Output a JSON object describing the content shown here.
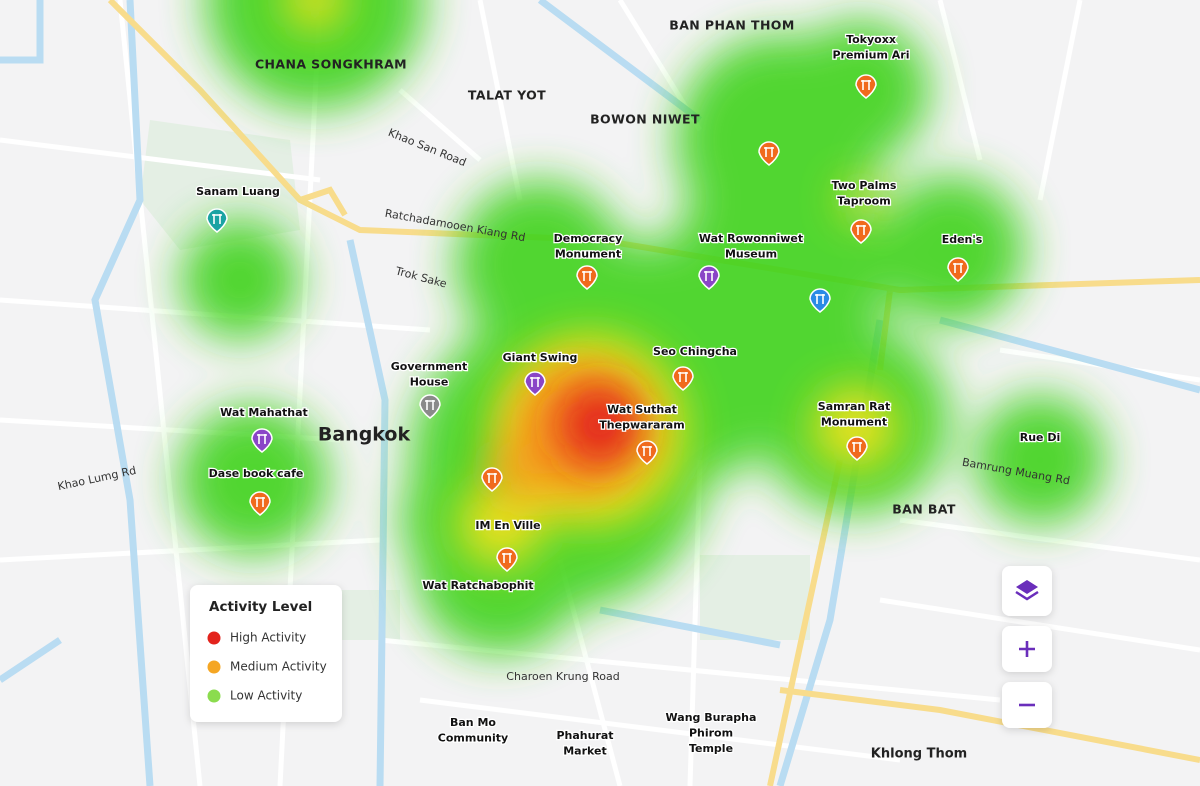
{
  "map": {
    "city": "Bangkok",
    "areas": [
      "CHANA SONGKHRAM",
      "TALAT YOT",
      "BOWON NIWET",
      "BAN PHAN THOM",
      "BAN BAT",
      "Khlong Thom"
    ],
    "roads": [
      "Khao San Road",
      "Ratchadamooen Kiang Rd",
      "Trok Sake",
      "Khao Lumg Rd",
      "Bamrung Muang Rd",
      "Charoen Krung Road"
    ],
    "places": [
      {
        "lines": [
          "Tokyoxx",
          "Premium Ari"
        ]
      },
      {
        "lines": [
          "Two Palms",
          "Taproom"
        ]
      },
      {
        "lines": [
          "Eden's"
        ]
      },
      {
        "lines": [
          "Wat Rowonniwet",
          "Museum"
        ]
      },
      {
        "lines": [
          "Democracy",
          "Monument"
        ]
      },
      {
        "lines": [
          "Sanam Luang"
        ]
      },
      {
        "lines": [
          "Giant Swing"
        ]
      },
      {
        "lines": [
          "Government",
          "House"
        ]
      },
      {
        "lines": [
          "Seo Chingcha"
        ]
      },
      {
        "lines": [
          "Wat Suthat",
          "Thepwararam"
        ]
      },
      {
        "lines": [
          "Samran Rat",
          "Monument"
        ]
      },
      {
        "lines": [
          "Rue Di"
        ]
      },
      {
        "lines": [
          "Wat Mahathat"
        ]
      },
      {
        "lines": [
          "Dase book cafe"
        ]
      },
      {
        "lines": [
          "IM En Ville"
        ]
      },
      {
        "lines": [
          "Wat Ratchabophit"
        ]
      },
      {
        "lines": [
          "Ban Mo",
          "Community"
        ]
      },
      {
        "lines": [
          "Phahurat",
          "Market"
        ]
      },
      {
        "lines": [
          "Wang Burapha",
          "Phirom",
          "Temple"
        ]
      }
    ]
  },
  "legend": {
    "title": "Activity Level",
    "items": [
      {
        "label": "High Activity",
        "color": "#e3231c"
      },
      {
        "label": "Medium Activity",
        "color": "#f5a623"
      },
      {
        "label": "Low Activity",
        "color": "#8bdc4e"
      }
    ]
  }
}
